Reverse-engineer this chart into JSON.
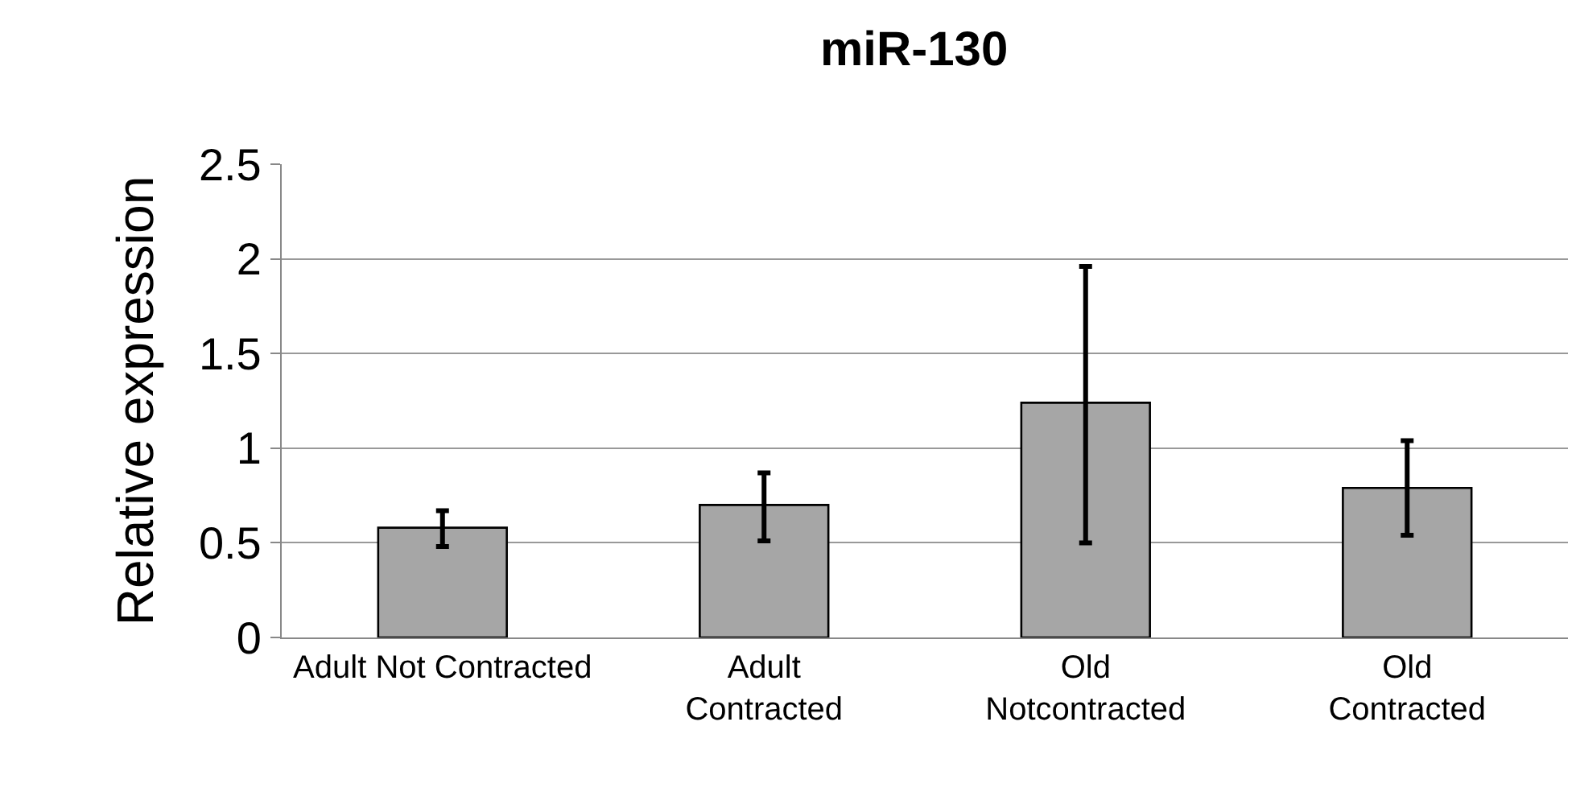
{
  "chart_data": {
    "type": "bar",
    "title": "miR-130",
    "ylabel": "Relative expression",
    "categories": [
      "Adult Not Contracted",
      "Adult Contracted",
      "Old Notcontracted",
      "Old Contracted"
    ],
    "values": [
      0.58,
      0.7,
      1.24,
      0.79
    ],
    "color": "#a6a6a6",
    "errors": [
      [
        0.48,
        0.67
      ],
      [
        0.51,
        0.87
      ],
      [
        0.5,
        1.96
      ],
      [
        0.54,
        1.04
      ]
    ],
    "ylim": [
      0,
      2.5
    ],
    "yticks": [
      0,
      0.5,
      1,
      1.5,
      2,
      2.5
    ],
    "grid": "y",
    "legend": false
  }
}
